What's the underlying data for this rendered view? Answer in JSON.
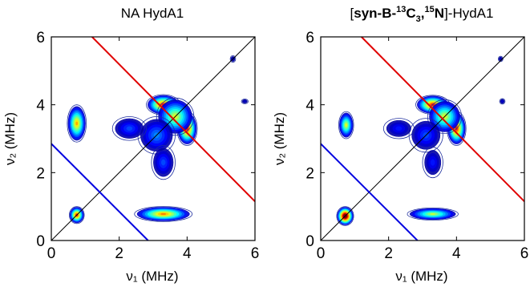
{
  "chart_data": [
    {
      "type": "contour",
      "title": "NA HydA1",
      "xlabel": "ν₁ (MHz)",
      "ylabel": "ν₂ (MHz)",
      "xlim": [
        0,
        6
      ],
      "ylim": [
        0,
        6
      ],
      "xticks": [
        "0",
        "2",
        "4",
        "6"
      ],
      "yticks": [
        "0",
        "2",
        "4",
        "6"
      ],
      "diagonal_line": {
        "from": [
          0,
          0
        ],
        "to": [
          6,
          6
        ],
        "color": "#000000"
      },
      "red_antidiagonal": {
        "from": [
          1.2,
          6.0
        ],
        "to": [
          6.0,
          1.15
        ],
        "color": "#e00000"
      },
      "blue_antidiagonal": {
        "from": [
          0.0,
          2.85
        ],
        "to": [
          2.85,
          0.0
        ],
        "color": "#0000e0"
      },
      "peaks": [
        {
          "x": 0.75,
          "y": 0.75,
          "amp": 1.0,
          "sx": 0.22,
          "sy": 0.25
        },
        {
          "x": 0.75,
          "y": 3.45,
          "amp": 0.9,
          "sx": 0.28,
          "sy": 0.55
        },
        {
          "x": 3.3,
          "y": 0.78,
          "amp": 0.95,
          "sx": 0.85,
          "sy": 0.22
        },
        {
          "x": 3.3,
          "y": 4.0,
          "amp": 1.0,
          "sx": 0.5,
          "sy": 0.3
        },
        {
          "x": 4.0,
          "y": 3.3,
          "amp": 1.0,
          "sx": 0.3,
          "sy": 0.5
        },
        {
          "x": 3.65,
          "y": 3.65,
          "amp": 0.85,
          "sx": 0.55,
          "sy": 0.55
        },
        {
          "x": 3.1,
          "y": 3.1,
          "amp": 0.55,
          "sx": 0.55,
          "sy": 0.55
        },
        {
          "x": 2.3,
          "y": 3.3,
          "amp": 0.5,
          "sx": 0.5,
          "sy": 0.35
        },
        {
          "x": 3.3,
          "y": 2.3,
          "amp": 0.5,
          "sx": 0.35,
          "sy": 0.5
        },
        {
          "x": 5.35,
          "y": 5.35,
          "amp": 0.3,
          "sx": 0.08,
          "sy": 0.1
        },
        {
          "x": 5.7,
          "y": 4.1,
          "amp": 0.3,
          "sx": 0.1,
          "sy": 0.07
        }
      ]
    },
    {
      "type": "contour",
      "title_plain_prefix": "[",
      "title_bold": "syn-B-",
      "title_sup1": "13",
      "title_mid": "C",
      "title_sub": "3",
      "title_comma": ",",
      "title_sup2": "15",
      "title_n": "N",
      "title_plain_suffix": "]-HydA1",
      "xlabel": "ν₁ (MHz)",
      "ylabel": "ν₂ (MHz)",
      "xlim": [
        0,
        6
      ],
      "ylim": [
        0,
        6
      ],
      "xticks": [
        "0",
        "2",
        "4",
        "6"
      ],
      "yticks": [
        "0",
        "2",
        "4",
        "6"
      ],
      "diagonal_line": {
        "from": [
          0,
          0
        ],
        "to": [
          6,
          6
        ],
        "color": "#000000"
      },
      "red_antidiagonal": {
        "from": [
          1.2,
          6.0
        ],
        "to": [
          6.0,
          1.15
        ],
        "color": "#e00000"
      },
      "blue_antidiagonal": {
        "from": [
          0.0,
          2.85
        ],
        "to": [
          2.85,
          0.0
        ],
        "color": "#0000e0"
      },
      "peaks": [
        {
          "x": 0.72,
          "y": 0.72,
          "amp": 1.15,
          "sx": 0.25,
          "sy": 0.28
        },
        {
          "x": 0.75,
          "y": 3.4,
          "amp": 0.85,
          "sx": 0.22,
          "sy": 0.4
        },
        {
          "x": 3.3,
          "y": 0.78,
          "amp": 0.8,
          "sx": 0.75,
          "sy": 0.18
        },
        {
          "x": 3.3,
          "y": 4.0,
          "amp": 1.0,
          "sx": 0.5,
          "sy": 0.28
        },
        {
          "x": 4.0,
          "y": 3.3,
          "amp": 1.0,
          "sx": 0.28,
          "sy": 0.5
        },
        {
          "x": 3.65,
          "y": 3.65,
          "amp": 0.85,
          "sx": 0.5,
          "sy": 0.5
        },
        {
          "x": 3.1,
          "y": 3.1,
          "amp": 0.5,
          "sx": 0.5,
          "sy": 0.5
        },
        {
          "x": 2.3,
          "y": 3.3,
          "amp": 0.45,
          "sx": 0.45,
          "sy": 0.3
        },
        {
          "x": 3.3,
          "y": 2.3,
          "amp": 0.45,
          "sx": 0.3,
          "sy": 0.45
        },
        {
          "x": 5.3,
          "y": 5.35,
          "amp": 0.3,
          "sx": 0.07,
          "sy": 0.08
        },
        {
          "x": 5.35,
          "y": 4.1,
          "amp": 0.35,
          "sx": 0.08,
          "sy": 0.08
        }
      ]
    }
  ]
}
